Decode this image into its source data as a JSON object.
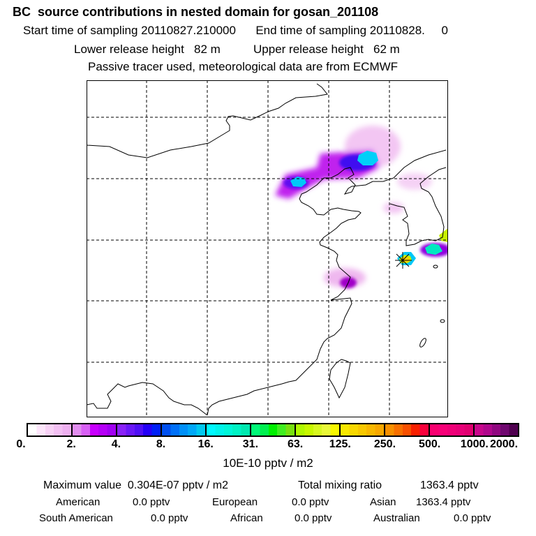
{
  "header": {
    "title": "BC  source contributions in nested domain for gosan_201108",
    "start_label": "Start time of sampling",
    "start_value": "20110827.210000",
    "end_label": "End time of sampling",
    "end_value": "20110828.     0",
    "lower_label": "Lower release height",
    "lower_value": "82 m",
    "upper_label": "Upper release height",
    "upper_value": "62 m",
    "note": "Passive tracer used, meteorological data are from ECMWF"
  },
  "colorbar": {
    "ticks": [
      "0.",
      "2.",
      "4.",
      "8.",
      "16.",
      "31.",
      "63.",
      "125.",
      "250.",
      "500.",
      "1000.",
      "2000."
    ],
    "segments": [
      [
        "#ffffff",
        "#fde6fb",
        "#f8d2f6",
        "#f3c0f3",
        "#eeb0f0"
      ],
      [
        "#e28df0",
        "#d860f5",
        "#c800ff",
        "#b600f8",
        "#a100f2"
      ],
      [
        "#8a22f8",
        "#6a18f8",
        "#4f10f6",
        "#2400f8",
        "#0020f8"
      ],
      [
        "#0050f0",
        "#0070f8",
        "#0090f8",
        "#00a8f8",
        "#00c8f0"
      ],
      [
        "#00f8ff",
        "#00f4ea",
        "#00f6d8",
        "#00f2c4",
        "#00e8b0"
      ],
      [
        "#00f878",
        "#00f050",
        "#00f000",
        "#40ee20",
        "#78e010"
      ],
      [
        "#b0f800",
        "#c8f800",
        "#d8f820",
        "#e8f838",
        "#f8f800"
      ],
      [
        "#f8e800",
        "#f8d800",
        "#f8c800",
        "#f8b800",
        "#f8a800"
      ],
      [
        "#f89000",
        "#f87000",
        "#f85000",
        "#f82000",
        "#f8003c"
      ],
      [
        "#f80070",
        "#f80078",
        "#f00078",
        "#e80078",
        "#e00070"
      ],
      [
        "#c8088c",
        "#b0088c",
        "#900880",
        "#700870",
        "#500050"
      ]
    ],
    "unit": "10E-10 pptv / m2"
  },
  "summary": {
    "max_label": "Maximum value",
    "max_value": "0.304E-07 pptv / m2",
    "total_label": "Total mixing ratio",
    "total_value": "1363.4 pptv",
    "regions": [
      {
        "name": "American",
        "value": "0.0 pptv"
      },
      {
        "name": "European",
        "value": "0.0 pptv"
      },
      {
        "name": "Asian",
        "value": "1363.4 pptv"
      },
      {
        "name": "South American",
        "value": "0.0 pptv"
      },
      {
        "name": "African",
        "value": "0.0 pptv"
      },
      {
        "name": "Australian",
        "value": "0.0 pptv"
      }
    ]
  }
}
